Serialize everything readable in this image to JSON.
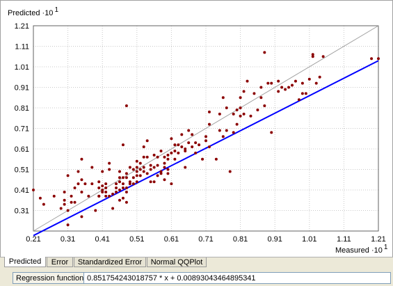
{
  "chart_data": {
    "type": "scatter",
    "ylabel": "Predicted ·10",
    "ylabel_exponent": "1",
    "xlabel": "Measured ·10",
    "xlabel_exponent": "1",
    "xlim": [
      0.21,
      1.21
    ],
    "ylim": [
      0.21,
      1.21
    ],
    "xticks": [
      "0.21",
      "0.31",
      "0.41",
      "0.51",
      "0.61",
      "0.71",
      "0.81",
      "0.91",
      "1.01",
      "1.11",
      "1.21"
    ],
    "yticks": [
      "1.21",
      "1.11",
      "1.01",
      "0.91",
      "0.81",
      "0.71",
      "0.61",
      "0.51",
      "0.41",
      "0.31"
    ],
    "grid": true,
    "identity_line": {
      "x": [
        0.21,
        1.21
      ],
      "y": [
        0.21,
        1.21
      ],
      "color": "#a0a0a0"
    },
    "regression_line": {
      "slope": 0.851754243018757,
      "intercept": 0.00893043464895341,
      "color": "#0000ff"
    },
    "point_color": "#8b0000",
    "points": [
      [
        0.21,
        0.41
      ],
      [
        0.23,
        0.37
      ],
      [
        0.24,
        0.34
      ],
      [
        0.27,
        0.38
      ],
      [
        0.29,
        0.32
      ],
      [
        0.3,
        0.34
      ],
      [
        0.3,
        0.4
      ],
      [
        0.3,
        0.36
      ],
      [
        0.31,
        0.24
      ],
      [
        0.31,
        0.48
      ],
      [
        0.31,
        0.31
      ],
      [
        0.32,
        0.38
      ],
      [
        0.32,
        0.35
      ],
      [
        0.33,
        0.35
      ],
      [
        0.33,
        0.42
      ],
      [
        0.34,
        0.5
      ],
      [
        0.34,
        0.44
      ],
      [
        0.35,
        0.28
      ],
      [
        0.35,
        0.4
      ],
      [
        0.35,
        0.46
      ],
      [
        0.35,
        0.56
      ],
      [
        0.36,
        0.44
      ],
      [
        0.37,
        0.38
      ],
      [
        0.38,
        0.44
      ],
      [
        0.38,
        0.52
      ],
      [
        0.39,
        0.31
      ],
      [
        0.4,
        0.38
      ],
      [
        0.4,
        0.42
      ],
      [
        0.4,
        0.45
      ],
      [
        0.4,
        0.38
      ],
      [
        0.41,
        0.4
      ],
      [
        0.41,
        0.41
      ],
      [
        0.41,
        0.43
      ],
      [
        0.41,
        0.5
      ],
      [
        0.42,
        0.4
      ],
      [
        0.42,
        0.42
      ],
      [
        0.42,
        0.38
      ],
      [
        0.42,
        0.44
      ],
      [
        0.43,
        0.38
      ],
      [
        0.43,
        0.54
      ],
      [
        0.43,
        0.51
      ],
      [
        0.44,
        0.32
      ],
      [
        0.44,
        0.39
      ],
      [
        0.45,
        0.42
      ],
      [
        0.45,
        0.44
      ],
      [
        0.45,
        0.4
      ],
      [
        0.46,
        0.41
      ],
      [
        0.46,
        0.47
      ],
      [
        0.46,
        0.5
      ],
      [
        0.46,
        0.45
      ],
      [
        0.46,
        0.36
      ],
      [
        0.47,
        0.42
      ],
      [
        0.47,
        0.44
      ],
      [
        0.47,
        0.37
      ],
      [
        0.47,
        0.63
      ],
      [
        0.47,
        0.47
      ],
      [
        0.48,
        0.35
      ],
      [
        0.48,
        0.47
      ],
      [
        0.48,
        0.49
      ],
      [
        0.48,
        0.4
      ],
      [
        0.48,
        0.42
      ],
      [
        0.48,
        0.82
      ],
      [
        0.49,
        0.45
      ],
      [
        0.49,
        0.52
      ],
      [
        0.49,
        0.44
      ],
      [
        0.5,
        0.44
      ],
      [
        0.5,
        0.51
      ],
      [
        0.5,
        0.47
      ],
      [
        0.51,
        0.48
      ],
      [
        0.51,
        0.52
      ],
      [
        0.51,
        0.5
      ],
      [
        0.51,
        0.45
      ],
      [
        0.51,
        0.55
      ],
      [
        0.52,
        0.54
      ],
      [
        0.52,
        0.51
      ],
      [
        0.52,
        0.48
      ],
      [
        0.53,
        0.57
      ],
      [
        0.53,
        0.52
      ],
      [
        0.53,
        0.62
      ],
      [
        0.53,
        0.5
      ],
      [
        0.54,
        0.49
      ],
      [
        0.54,
        0.57
      ],
      [
        0.54,
        0.65
      ],
      [
        0.55,
        0.53
      ],
      [
        0.55,
        0.51
      ],
      [
        0.55,
        0.45
      ],
      [
        0.56,
        0.45
      ],
      [
        0.56,
        0.58
      ],
      [
        0.56,
        0.52
      ],
      [
        0.57,
        0.48
      ],
      [
        0.57,
        0.53
      ],
      [
        0.57,
        0.57
      ],
      [
        0.58,
        0.5
      ],
      [
        0.58,
        0.49
      ],
      [
        0.58,
        0.6
      ],
      [
        0.59,
        0.57
      ],
      [
        0.59,
        0.46
      ],
      [
        0.59,
        0.52
      ],
      [
        0.59,
        0.54
      ],
      [
        0.6,
        0.56
      ],
      [
        0.6,
        0.58
      ],
      [
        0.6,
        0.51
      ],
      [
        0.6,
        0.49
      ],
      [
        0.61,
        0.66
      ],
      [
        0.61,
        0.44
      ],
      [
        0.61,
        0.59
      ],
      [
        0.62,
        0.6
      ],
      [
        0.62,
        0.56
      ],
      [
        0.62,
        0.63
      ],
      [
        0.63,
        0.63
      ],
      [
        0.63,
        0.59
      ],
      [
        0.64,
        0.68
      ],
      [
        0.64,
        0.62
      ],
      [
        0.65,
        0.6
      ],
      [
        0.65,
        0.52
      ],
      [
        0.65,
        0.61
      ],
      [
        0.66,
        0.7
      ],
      [
        0.66,
        0.64
      ],
      [
        0.67,
        0.68
      ],
      [
        0.67,
        0.62
      ],
      [
        0.68,
        0.59
      ],
      [
        0.68,
        0.64
      ],
      [
        0.69,
        0.63
      ],
      [
        0.7,
        0.56
      ],
      [
        0.71,
        0.67
      ],
      [
        0.71,
        0.65
      ],
      [
        0.72,
        0.62
      ],
      [
        0.72,
        0.73
      ],
      [
        0.72,
        0.79
      ],
      [
        0.74,
        0.56
      ],
      [
        0.75,
        0.78
      ],
      [
        0.75,
        0.7
      ],
      [
        0.76,
        0.86
      ],
      [
        0.76,
        0.67
      ],
      [
        0.77,
        0.7
      ],
      [
        0.77,
        0.81
      ],
      [
        0.78,
        0.5
      ],
      [
        0.79,
        0.78
      ],
      [
        0.79,
        0.69
      ],
      [
        0.8,
        0.73
      ],
      [
        0.8,
        0.8
      ],
      [
        0.81,
        0.81
      ],
      [
        0.81,
        0.77
      ],
      [
        0.81,
        0.86
      ],
      [
        0.82,
        0.89
      ],
      [
        0.82,
        0.78
      ],
      [
        0.83,
        0.94
      ],
      [
        0.84,
        0.77
      ],
      [
        0.85,
        0.88
      ],
      [
        0.86,
        0.8
      ],
      [
        0.87,
        0.86
      ],
      [
        0.87,
        0.91
      ],
      [
        0.88,
        0.82
      ],
      [
        0.88,
        1.08
      ],
      [
        0.89,
        0.93
      ],
      [
        0.9,
        0.93
      ],
      [
        0.9,
        0.69
      ],
      [
        0.92,
        0.89
      ],
      [
        0.92,
        0.94
      ],
      [
        0.93,
        0.91
      ],
      [
        0.94,
        0.9
      ],
      [
        0.95,
        0.91
      ],
      [
        0.96,
        0.92
      ],
      [
        0.97,
        0.94
      ],
      [
        0.98,
        0.85
      ],
      [
        0.99,
        0.93
      ],
      [
        0.99,
        0.88
      ],
      [
        1.0,
        0.88
      ],
      [
        1.01,
        0.95
      ],
      [
        1.02,
        1.07
      ],
      [
        1.02,
        1.06
      ],
      [
        1.03,
        0.93
      ],
      [
        1.04,
        0.96
      ],
      [
        1.05,
        1.06
      ],
      [
        1.19,
        1.05
      ],
      [
        1.21,
        1.05
      ]
    ]
  },
  "tabs": [
    {
      "label": "Predicted",
      "active": true
    },
    {
      "label": "Error",
      "active": false
    },
    {
      "label": "Standardized Error",
      "active": false
    },
    {
      "label": "Normal QQPlot",
      "active": false
    }
  ],
  "status": {
    "regression_label": "Regression function",
    "regression_value": "0.851754243018757 * x + 0.00893043464895341"
  }
}
